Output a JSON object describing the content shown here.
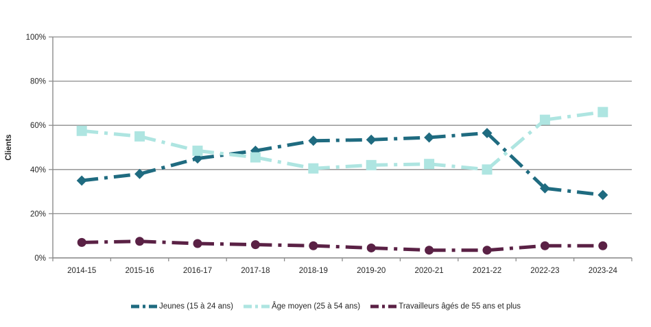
{
  "chart_data": {
    "type": "line",
    "title": "",
    "ylabel": "Clients",
    "xlabel": "",
    "categories": [
      "2014-15",
      "2015-16",
      "2016-17",
      "2017-18",
      "2018-19",
      "2019-20",
      "2020-21",
      "2021-22",
      "2022-23",
      "2023-24"
    ],
    "y_ticks": [
      "0%",
      "20%",
      "40%",
      "60%",
      "80%",
      "100%"
    ],
    "ylim": [
      0,
      100
    ],
    "grid": true,
    "legend_position": "bottom",
    "colors": {
      "axis": "#8C8C8C",
      "grid": "#8C8C8C",
      "text": "#262626",
      "background": "#FFFFFF"
    },
    "series": [
      {
        "name": "Jeunes (15 à 24 ans)",
        "color": "#1F6B80",
        "marker": "diamond",
        "values": [
          35,
          38,
          45,
          48.5,
          53,
          53.5,
          54.5,
          56.5,
          31.5,
          28.5
        ]
      },
      {
        "name": "Âge moyen (25 à 54 ans)",
        "color": "#AEE5E1",
        "marker": "square",
        "values": [
          57.5,
          55,
          48.5,
          45.5,
          40.5,
          42,
          42.5,
          40,
          62.5,
          66
        ]
      },
      {
        "name": "Travailleurs âgés de 55 ans et plus",
        "color": "#5A2145",
        "marker": "circle",
        "values": [
          7,
          7.5,
          6.5,
          6,
          5.5,
          4.5,
          3.5,
          3.5,
          5.5,
          5.5
        ]
      }
    ]
  }
}
